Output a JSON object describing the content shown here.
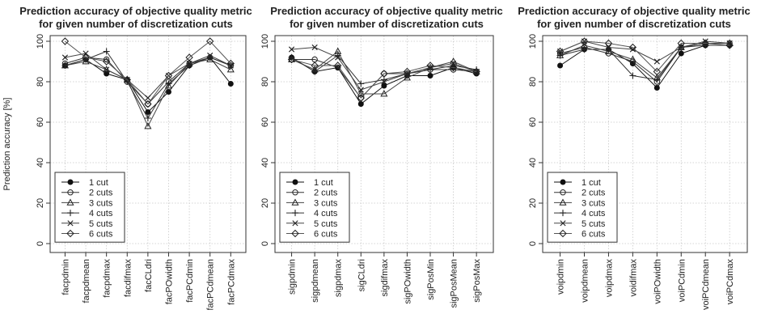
{
  "chart_data": [
    {
      "type": "line",
      "title": "Prediction accuracy of objective quality metric",
      "subtitle": "for given number of discretization cuts",
      "ylabel": "Prediction accuracy [%]",
      "xlabel": "",
      "ylim": [
        0,
        100
      ],
      "yticks": [
        0,
        20,
        40,
        60,
        80,
        100
      ],
      "grid": true,
      "legend_position": "bottom-left",
      "categories": [
        "facpdmin",
        "facpdmean",
        "facpdmax",
        "facdifmax",
        "facCLdri",
        "facPOwidth",
        "facPCdmin",
        "facPCdmean",
        "facPCdmax"
      ],
      "series": [
        {
          "name": "1 cut",
          "marker": "filled-circle",
          "values": [
            88,
            91,
            84,
            81,
            65,
            75,
            88,
            92,
            79
          ]
        },
        {
          "name": "2 cuts",
          "marker": "circle",
          "values": [
            89,
            92,
            91,
            80,
            69,
            80,
            89,
            92,
            88
          ]
        },
        {
          "name": "3 cuts",
          "marker": "triangle",
          "values": [
            88,
            90,
            86,
            81,
            58,
            78,
            89,
            91,
            86
          ]
        },
        {
          "name": "4 cuts",
          "marker": "plus",
          "values": [
            88,
            91,
            95,
            80,
            62,
            79,
            88,
            92,
            88
          ]
        },
        {
          "name": "5 cuts",
          "marker": "x",
          "values": [
            92,
            94,
            86,
            81,
            72,
            83,
            89,
            93,
            88
          ]
        },
        {
          "name": "6 cuts",
          "marker": "diamond",
          "values": [
            100,
            92,
            90,
            81,
            69,
            83,
            92,
            100,
            89
          ]
        }
      ]
    },
    {
      "type": "line",
      "title": "Prediction accuracy of objective quality metric",
      "subtitle": "for given number of discretization cuts",
      "ylabel": "",
      "xlabel": "",
      "ylim": [
        0,
        100
      ],
      "yticks": [
        0,
        20,
        40,
        60,
        80,
        100
      ],
      "grid": true,
      "legend_position": "bottom-left",
      "categories": [
        "sigpdmin",
        "sigpdmean",
        "sigpdmax",
        "sigCLdri",
        "sigdifmax",
        "sigPOwidth",
        "sigPosMin",
        "sigPosMean",
        "sigPosMax"
      ],
      "series": [
        {
          "name": "1 cut",
          "marker": "filled-circle",
          "values": [
            92,
            85,
            87,
            69,
            78,
            83,
            83,
            87,
            84
          ]
        },
        {
          "name": "2 cuts",
          "marker": "circle",
          "values": [
            91,
            91,
            87,
            72,
            84,
            84,
            86,
            86,
            85
          ]
        },
        {
          "name": "3 cuts",
          "marker": "triangle",
          "values": [
            91,
            86,
            95,
            74,
            74,
            82,
            87,
            90,
            85
          ]
        },
        {
          "name": "4 cuts",
          "marker": "plus",
          "values": [
            92,
            85,
            93,
            79,
            81,
            84,
            86,
            88,
            86
          ]
        },
        {
          "name": "5 cuts",
          "marker": "x",
          "values": [
            96,
            97,
            92,
            76,
            80,
            84,
            87,
            89,
            85
          ]
        },
        {
          "name": "6 cuts",
          "marker": "diamond",
          "values": [
            91,
            88,
            88,
            72,
            84,
            85,
            88,
            87,
            85
          ]
        }
      ]
    },
    {
      "type": "line",
      "title": "Prediction accuracy of objective quality metric",
      "subtitle": "for given number of discretization cuts",
      "ylabel": "",
      "xlabel": "",
      "ylim": [
        0,
        100
      ],
      "yticks": [
        0,
        20,
        40,
        60,
        80,
        100
      ],
      "grid": true,
      "legend_position": "bottom-left",
      "categories": [
        "voipdmin",
        "voipdmean",
        "voipdmax",
        "voidifmax",
        "voiPOwidth",
        "voiPCdmin",
        "voiPCdmean",
        "voiPCdmax"
      ],
      "series": [
        {
          "name": "1 cut",
          "marker": "filled-circle",
          "values": [
            88,
            96,
            96,
            89,
            77,
            94,
            98,
            98
          ]
        },
        {
          "name": "2 cuts",
          "marker": "circle",
          "values": [
            94,
            97,
            94,
            90,
            80,
            97,
            99,
            99
          ]
        },
        {
          "name": "3 cuts",
          "marker": "triangle",
          "values": [
            93,
            98,
            95,
            91,
            82,
            97,
            99,
            99
          ]
        },
        {
          "name": "4 cuts",
          "marker": "plus",
          "values": [
            93,
            96,
            96,
            83,
            81,
            97,
            98,
            98
          ]
        },
        {
          "name": "5 cuts",
          "marker": "x",
          "values": [
            95,
            100,
            97,
            96,
            90,
            97,
            100,
            99
          ]
        },
        {
          "name": "6 cuts",
          "marker": "diamond",
          "values": [
            95,
            100,
            99,
            97,
            85,
            99,
            99,
            98
          ]
        }
      ]
    }
  ]
}
